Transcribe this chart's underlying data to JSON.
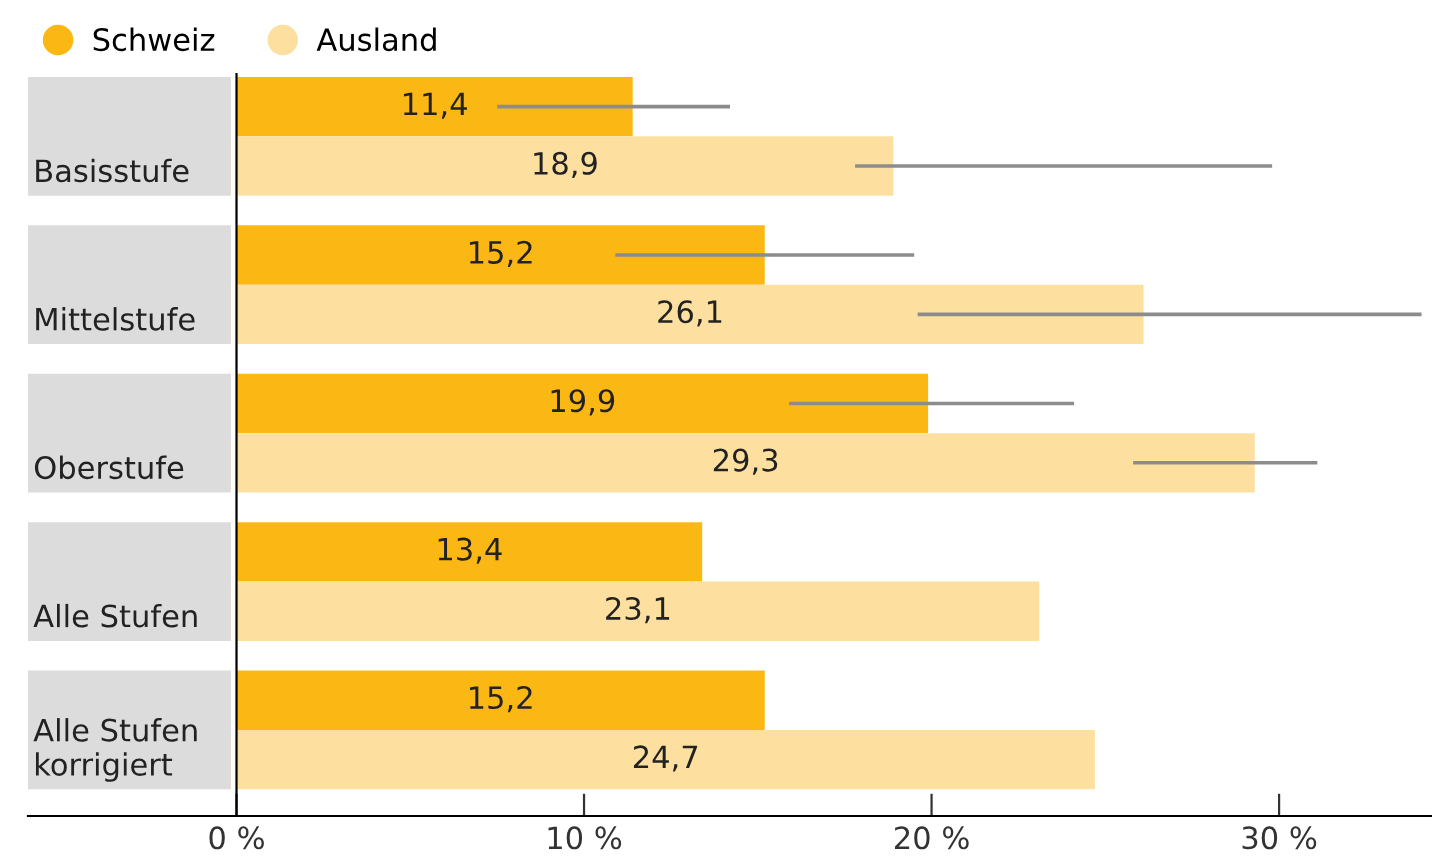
{
  "chart_data": {
    "type": "bar",
    "orientation": "horizontal",
    "categories": [
      "Basisstufe",
      "Mittelstufe",
      "Oberstufe",
      "Alle Stufen",
      "Alle Stufen\nkorrigiert"
    ],
    "series": [
      {
        "name": "Schweiz",
        "color": "#fbb814",
        "values": [
          11.4,
          15.2,
          19.9,
          13.4,
          15.2
        ],
        "value_labels": [
          "11,4",
          "15,2",
          "19,9",
          "13,4",
          "15,2"
        ],
        "errors": [
          [
            7.5,
            14.2
          ],
          [
            10.9,
            19.5
          ],
          [
            15.9,
            24.1
          ],
          null,
          null
        ]
      },
      {
        "name": "Ausland",
        "color": "#fde0a0",
        "values": [
          18.9,
          26.1,
          29.3,
          23.1,
          24.7
        ],
        "value_labels": [
          "18,9",
          "26,1",
          "29,3",
          "23,1",
          "24,7"
        ],
        "errors": [
          [
            17.8,
            29.8
          ],
          [
            19.6,
            34.1
          ],
          [
            25.8,
            31.1
          ],
          null,
          null
        ]
      }
    ],
    "xlim": [
      -6,
      34.4
    ],
    "xticks": [
      {
        "value": 0,
        "label": "0 %"
      },
      {
        "value": 10,
        "label": "10 %"
      },
      {
        "value": 20,
        "label": "20 %"
      },
      {
        "value": 30,
        "label": "30 %"
      }
    ],
    "legend": "top left",
    "grid": false
  }
}
